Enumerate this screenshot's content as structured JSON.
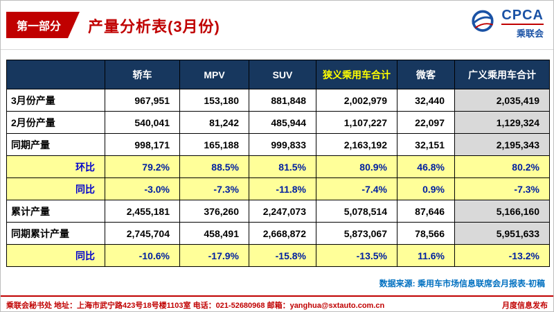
{
  "page": {
    "badge": "第一部分",
    "title": "产量分析表(3月份)"
  },
  "logo": {
    "name": "CPCA",
    "subtitle": "乘联会"
  },
  "table": {
    "columns": [
      "",
      "轿车",
      "MPV",
      "SUV",
      "狭义乘用车合计",
      "微客",
      "广义乘用车合计"
    ],
    "highlight_col_index": 4,
    "rows": [
      {
        "label": "3月份产量",
        "type": "data",
        "values": [
          "967,951",
          "153,180",
          "881,848",
          "2,002,979",
          "32,440",
          "2,035,419"
        ]
      },
      {
        "label": "2月份产量",
        "type": "data",
        "values": [
          "540,041",
          "81,242",
          "485,944",
          "1,107,227",
          "22,097",
          "1,129,324"
        ]
      },
      {
        "label": "同期产量",
        "type": "data",
        "values": [
          "998,171",
          "165,188",
          "999,833",
          "2,163,192",
          "32,151",
          "2,195,343"
        ]
      },
      {
        "label": "环比",
        "type": "percent",
        "values": [
          "79.2%",
          "88.5%",
          "81.5%",
          "80.9%",
          "46.8%",
          "80.2%"
        ]
      },
      {
        "label": "同比",
        "type": "percent",
        "values": [
          "-3.0%",
          "-7.3%",
          "-11.8%",
          "-7.4%",
          "0.9%",
          "-7.3%"
        ]
      },
      {
        "label": "累计产量",
        "type": "data",
        "values": [
          "2,455,181",
          "376,260",
          "2,247,073",
          "5,078,514",
          "87,646",
          "5,166,160"
        ]
      },
      {
        "label": "同期累计产量",
        "type": "data",
        "values": [
          "2,745,704",
          "458,491",
          "2,668,872",
          "5,873,067",
          "78,566",
          "5,951,633"
        ]
      },
      {
        "label": "同比",
        "type": "percent",
        "values": [
          "-10.6%",
          "-17.9%",
          "-15.8%",
          "-13.5%",
          "11.6%",
          "-13.2%"
        ]
      }
    ]
  },
  "footer": {
    "source": "数据来源: 乘用车市场信息联席会月报表-初稿",
    "contact": "乘联会秘书处  地址：上海市武宁路423号18号楼1103室  电话：021-52680968  邮箱：yanghua@sxtauto.com.cn",
    "release": "月度信息发布"
  },
  "colors": {
    "accent_red": "#c00000",
    "header_navy": "#17375e",
    "header_highlight_text": "#ffff00",
    "percent_row_yellow": "#ffff99",
    "total_col_gray": "#d9d9d9",
    "percent_text_blue": "#0020a0",
    "source_text_blue": "#0070c0"
  }
}
